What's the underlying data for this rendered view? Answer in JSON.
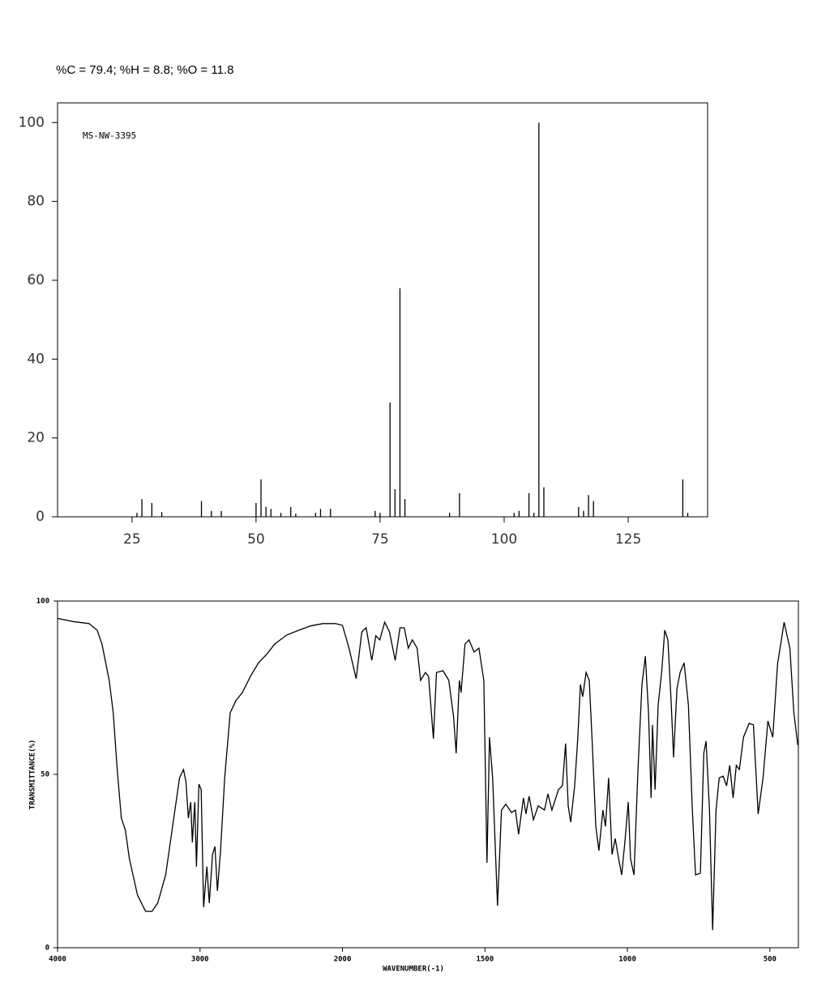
{
  "chart_data": [
    {
      "type": "bar",
      "title": "%C = 79.4; %H = 8.8; %O = 11.8",
      "annotation": "MS-NW-3395",
      "x": [
        26,
        27,
        29,
        31,
        39,
        41,
        43,
        50,
        51,
        52,
        53,
        55,
        57,
        58,
        62,
        63,
        65,
        74,
        75,
        77,
        78,
        79,
        80,
        89,
        91,
        102,
        103,
        105,
        106,
        107,
        108,
        115,
        116,
        117,
        118,
        136,
        137
      ],
      "values": [
        1,
        4.5,
        3.5,
        1.2,
        4,
        1.5,
        1.5,
        3.5,
        9.5,
        2.5,
        2,
        1,
        2.5,
        0.8,
        1,
        2,
        2,
        1.5,
        1,
        29,
        7,
        58,
        4.5,
        1,
        6,
        1,
        1.5,
        6,
        1,
        100,
        7.5,
        2.5,
        1.5,
        5.5,
        4,
        9.5,
        1
      ],
      "color": "#000000",
      "xlim": [
        10,
        141
      ],
      "ylim": [
        0,
        105
      ],
      "xticks": [
        25,
        50,
        75,
        100,
        125
      ],
      "yticks": [
        0,
        20,
        40,
        60,
        80,
        100
      ]
    },
    {
      "type": "line",
      "xlabel": "WAVENUMBER(-1)",
      "ylabel": "TRANSMITTANCE(%)",
      "x": [
        4000,
        3892,
        3779,
        3722,
        3688,
        3637,
        3609,
        3581,
        3552,
        3524,
        3496,
        3439,
        3382,
        3337,
        3297,
        3241,
        3184,
        3144,
        3116,
        3099,
        3082,
        3065,
        3054,
        3037,
        3025,
        3008,
        2992,
        2975,
        2952,
        2935,
        2912,
        2895,
        2878,
        2856,
        2827,
        2788,
        2748,
        2703,
        2646,
        2589,
        2533,
        2476,
        2391,
        2306,
        2227,
        2136,
        2051,
        2000,
        1977,
        1952,
        1932,
        1917,
        1897,
        1883,
        1869,
        1852,
        1835,
        1815,
        1798,
        1783,
        1769,
        1755,
        1738,
        1726,
        1709,
        1698,
        1681,
        1670,
        1647,
        1627,
        1610,
        1601,
        1590,
        1584,
        1570,
        1556,
        1538,
        1521,
        1504,
        1493,
        1484,
        1473,
        1456,
        1442,
        1427,
        1407,
        1393,
        1382,
        1365,
        1356,
        1345,
        1330,
        1313,
        1291,
        1279,
        1265,
        1242,
        1228,
        1217,
        1208,
        1199,
        1185,
        1174,
        1165,
        1157,
        1145,
        1134,
        1123,
        1111,
        1100,
        1086,
        1077,
        1066,
        1054,
        1043,
        1031,
        1020,
        1009,
        997,
        989,
        977,
        963,
        949,
        937,
        926,
        917,
        912,
        903,
        892,
        880,
        869,
        858,
        846,
        838,
        826,
        815,
        801,
        786,
        772,
        761,
        744,
        732,
        724,
        712,
        701,
        689,
        678,
        664,
        652,
        641,
        629,
        618,
        607,
        593,
        573,
        558,
        541,
        524,
        507,
        490,
        473,
        450,
        430,
        416,
        402
      ],
      "values": [
        95,
        94.1,
        93.5,
        91.6,
        87.6,
        77,
        67.8,
        51.4,
        37.4,
        33.9,
        25.7,
        15.2,
        10.5,
        10.5,
        12.9,
        21,
        37.4,
        49,
        51.4,
        47.9,
        37.4,
        42,
        30.4,
        42,
        23.4,
        47.2,
        45.6,
        11.7,
        23.4,
        12.9,
        26.9,
        29.2,
        16.4,
        28,
        49,
        67.8,
        71.3,
        73.6,
        78.3,
        82.2,
        84.6,
        87.6,
        90.2,
        91.6,
        92.8,
        93.5,
        93.5,
        93,
        86.4,
        77.6,
        91.1,
        92.3,
        82.9,
        90,
        88.8,
        93.9,
        91.1,
        82.9,
        92.3,
        92.3,
        86.4,
        88.8,
        86.4,
        77.1,
        79.4,
        78.3,
        60.3,
        79.4,
        79.9,
        77.1,
        66.6,
        56.1,
        77.1,
        73.6,
        87.6,
        88.8,
        85.3,
        86.4,
        77.1,
        24.5,
        60.7,
        49,
        12.1,
        39.7,
        41.4,
        39,
        39.7,
        32.7,
        43.2,
        38.6,
        43.7,
        36.9,
        40.9,
        39.7,
        44.4,
        39.7,
        45.6,
        46.7,
        58.9,
        40.9,
        36.2,
        46.7,
        60.7,
        75.9,
        72.4,
        79.4,
        77.1,
        58.4,
        35,
        28,
        39.7,
        35,
        49,
        26.9,
        31.5,
        25.7,
        21,
        30.4,
        42,
        25.7,
        21,
        51.4,
        75.9,
        84.1,
        67.8,
        43.2,
        64.3,
        45.6,
        70.1,
        79.4,
        91.6,
        88.8,
        70.1,
        54.9,
        74.8,
        79.4,
        82.2,
        70.1,
        39.7,
        21,
        21.5,
        56.1,
        59.6,
        39.7,
        5.1,
        39.7,
        49,
        49.5,
        46.7,
        52.6,
        43.2,
        52.6,
        51.4,
        60.7,
        64.7,
        64.3,
        38.6,
        49,
        65.4,
        60.7,
        81.8,
        93.9,
        86.4,
        67.8,
        58.4
      ],
      "color": "#000000",
      "xlim": [
        4000,
        400
      ],
      "ylim": [
        0,
        100
      ],
      "x_scale_break": 2000,
      "xticks": [
        4000,
        3000,
        2000,
        1500,
        1000,
        500
      ],
      "yticks": [
        0,
        50,
        100
      ]
    }
  ]
}
